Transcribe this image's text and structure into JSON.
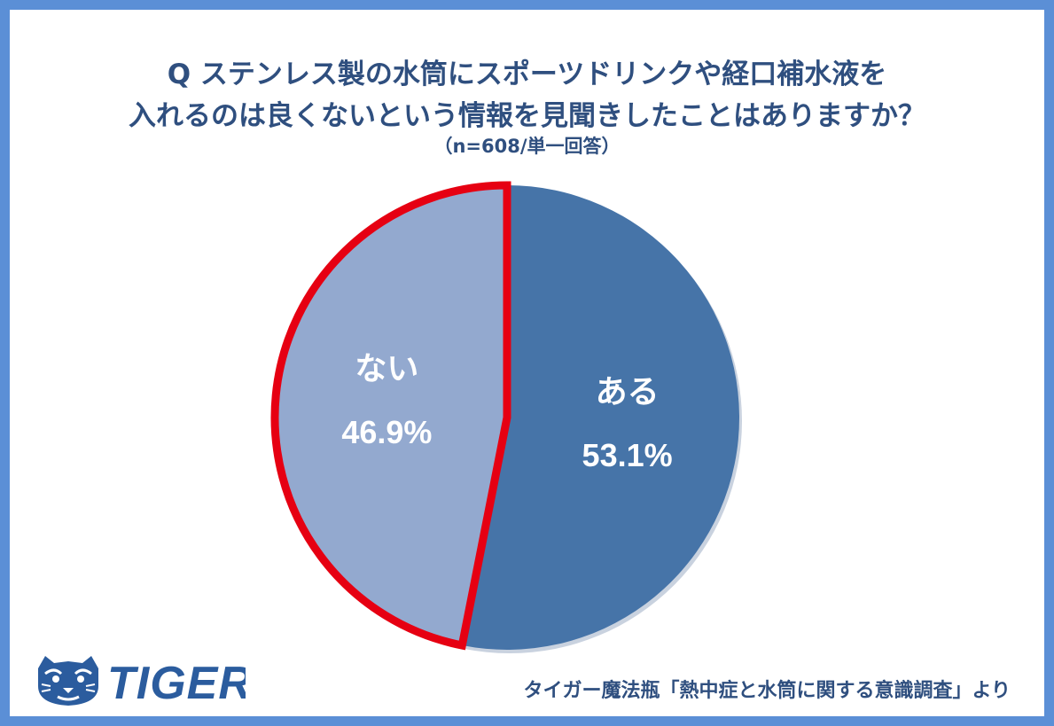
{
  "title_line1": "Q ステンレス製の水筒にスポーツドリンクや経口補水液を",
  "title_line2": "入れるのは良くないという情報を見聞きしたことはありますか？",
  "subtitle": "（n=608/単一回答）",
  "source": "タイガー魔法瓶「熱中症と水筒に関する意識調査」より",
  "logo": {
    "text": "TIGER",
    "icon": "tiger-head-icon",
    "color": "#2b5c9e"
  },
  "colors": {
    "frame": "#5b8fd6",
    "title": "#2f4f7f"
  },
  "chart_data": {
    "type": "pie",
    "title": "",
    "slices": [
      {
        "label": "ある",
        "value": 53.1,
        "display": "53.1%",
        "color": "#4674a8",
        "highlight": false
      },
      {
        "label": "ない",
        "value": 46.9,
        "display": "46.9%",
        "color": "#93a9cf",
        "highlight": true,
        "highlight_color": "#e60012"
      }
    ],
    "start": "12 o'clock",
    "direction": "clockwise",
    "legend": "none"
  }
}
